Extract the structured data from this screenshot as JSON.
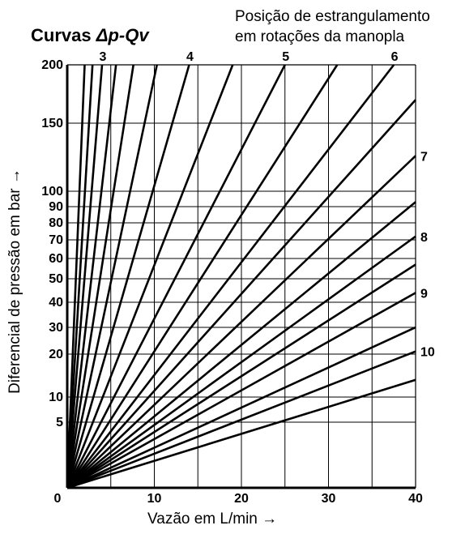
{
  "chart_data": {
    "type": "line",
    "title_prefix": "Curvas ",
    "title_formula": "Δp-Qv",
    "subtitle_lines": [
      "Posição de estrangulamento",
      "em rotações da manopla"
    ],
    "xlabel": "Vazão em L/min →",
    "ylabel": "Diferencial de pressão em bar →",
    "xlim": [
      0,
      40
    ],
    "ylim": [
      0,
      200
    ],
    "x_major_ticks": [
      0,
      10,
      20,
      30,
      40
    ],
    "x_minor_gridlines": [
      5,
      15,
      25,
      35
    ],
    "y_ticks": [
      5,
      10,
      20,
      30,
      40,
      50,
      60,
      70,
      80,
      90,
      100,
      150,
      200
    ],
    "origin_label": "0",
    "grid": true,
    "series": [
      {
        "endpoint": [
          2.0,
          200
        ]
      },
      {
        "endpoint": [
          2.9,
          200
        ]
      },
      {
        "endpoint": [
          4.0,
          200
        ],
        "label": "3"
      },
      {
        "endpoint": [
          5.6,
          200
        ]
      },
      {
        "endpoint": [
          7.6,
          200
        ]
      },
      {
        "endpoint": [
          10.3,
          200
        ]
      },
      {
        "endpoint": [
          14.0,
          200
        ],
        "label": "4"
      },
      {
        "endpoint": [
          19.0,
          200
        ]
      },
      {
        "endpoint": [
          25.0,
          200
        ],
        "label": "5"
      },
      {
        "endpoint": [
          31.0,
          200
        ]
      },
      {
        "endpoint": [
          37.5,
          200
        ],
        "label": "6"
      },
      {
        "endpoint": [
          40,
          170
        ]
      },
      {
        "endpoint": [
          40,
          126
        ],
        "label": "7"
      },
      {
        "endpoint": [
          40,
          93
        ]
      },
      {
        "endpoint": [
          40,
          72
        ],
        "label": "8"
      },
      {
        "endpoint": [
          40,
          57
        ]
      },
      {
        "endpoint": [
          40,
          44
        ],
        "label": "9"
      },
      {
        "endpoint": [
          40,
          30
        ]
      },
      {
        "endpoint": [
          40,
          21
        ],
        "label": "10"
      },
      {
        "endpoint": [
          40,
          14
        ]
      }
    ]
  }
}
